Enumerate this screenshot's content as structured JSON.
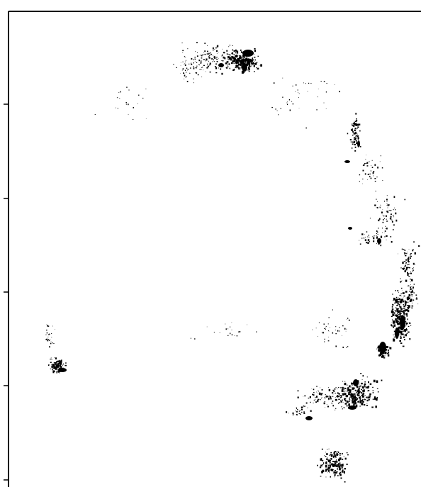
{
  "map": {
    "background_color": "#ffffff",
    "axis_color": "#000000",
    "point_color": "#000000",
    "frame_edges": [
      "top",
      "left"
    ],
    "left_axis_tick_count": 5,
    "left_axis_tick_labels": [],
    "title": "",
    "legend": []
  }
}
